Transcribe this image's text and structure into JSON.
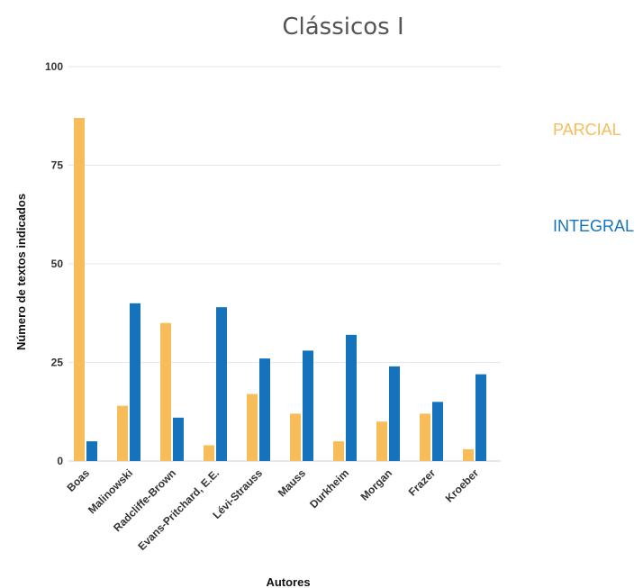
{
  "chart_data": {
    "type": "bar",
    "title": "Clássicos I",
    "xlabel": "Autores",
    "ylabel": "Número de textos  indicados",
    "ylim": [
      0,
      100
    ],
    "yticks": [
      0,
      25,
      50,
      75,
      100
    ],
    "grid": true,
    "legend_position": "right",
    "categories": [
      "Boas",
      "Malinowski",
      "Radcliffe-Brown",
      "Evans-Pritchard, E.E.",
      "Lévi-Strauss",
      "Mauss",
      "Durkheim",
      "Morgan",
      "Frazer",
      "Kroeber"
    ],
    "series": [
      {
        "name": "PARCIAL",
        "color": "#F7BD5B",
        "values": [
          87,
          14,
          35,
          4,
          17,
          12,
          5,
          10,
          12,
          3
        ]
      },
      {
        "name": "INTEGRAL",
        "color": "#1473BA",
        "values": [
          5,
          40,
          11,
          39,
          26,
          28,
          32,
          24,
          15,
          22
        ]
      }
    ]
  }
}
